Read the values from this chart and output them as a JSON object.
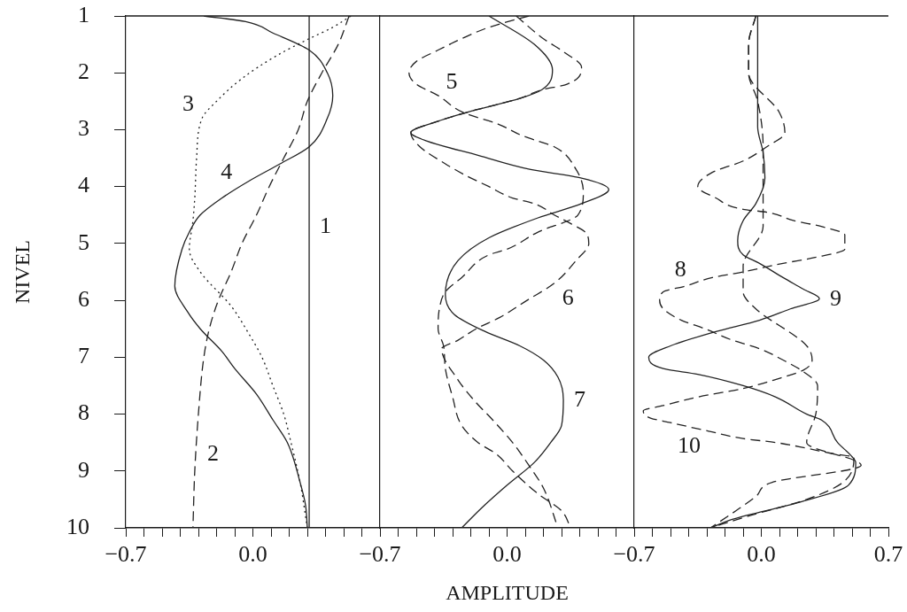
{
  "chart_data": [
    {
      "type": "line",
      "ylabel": "NIVEL",
      "xlim": [
        -0.7,
        0.7
      ],
      "xticks": [
        {
          "value": -0.7,
          "label": "−0.7"
        },
        {
          "value": -0.6,
          "label": null
        },
        {
          "value": -0.5,
          "label": null
        },
        {
          "value": -0.4,
          "label": null
        },
        {
          "value": -0.3,
          "label": null
        },
        {
          "value": -0.2,
          "label": null
        },
        {
          "value": -0.1,
          "label": null
        },
        {
          "value": 0,
          "label": "0.0"
        },
        {
          "value": 0.1,
          "label": null
        },
        {
          "value": 0.2,
          "label": null
        },
        {
          "value": 0.3,
          "label": null
        },
        {
          "value": 0.4,
          "label": null
        },
        {
          "value": 0.5,
          "label": null
        },
        {
          "value": 0.6,
          "label": null
        },
        {
          "value": 0.7,
          "label": null
        }
      ],
      "ylim": [
        10,
        1
      ],
      "yticks": [
        1,
        2,
        3,
        4,
        5,
        6,
        7,
        8,
        9,
        10
      ],
      "annotations": [
        {
          "text": "1",
          "x": 0.31,
          "y": 4.7
        },
        {
          "text": "2",
          "x": -0.31,
          "y": 8.7
        },
        {
          "text": "3",
          "x": -0.28,
          "y": 2.8
        },
        {
          "text": "4",
          "x": -0.07,
          "y": 4.0
        }
      ],
      "series": [
        {
          "color": "#222222",
          "line_style": "solid",
          "x": [
            0.31,
            0.31,
            0.31,
            0.31,
            0.31,
            0.31,
            0.31,
            0.31,
            0.31,
            0.31
          ],
          "values": [
            1,
            2,
            3,
            4,
            5,
            6,
            7,
            8,
            9,
            10
          ]
        },
        {
          "color": "#222222",
          "line_style": "dashed",
          "x": [
            0.53,
            0.47,
            0.38,
            0.3,
            0.25,
            0.17,
            0.09,
            0.02,
            -0.06,
            -0.12,
            -0.19,
            -0.24,
            -0.27,
            -0.3,
            -0.32,
            -0.33
          ],
          "values": [
            1,
            1.5,
            2,
            2.5,
            3,
            3.5,
            4,
            4.5,
            5,
            5.5,
            6,
            6.5,
            7,
            8,
            9,
            10
          ]
        },
        {
          "color": "#222222",
          "line_style": "dotted",
          "x": [
            0.54,
            0.44,
            0.31,
            0.13,
            -0.06,
            -0.2,
            -0.28,
            -0.31,
            -0.32,
            -0.33,
            -0.35,
            -0.29,
            -0.12,
            -0.02,
            0.05,
            0.11,
            0.17,
            0.21,
            0.26,
            0.3
          ],
          "values": [
            1,
            1.2,
            1.4,
            1.7,
            2.1,
            2.5,
            2.8,
            3.5,
            4.2,
            4.6,
            5.1,
            5.5,
            6.1,
            6.6,
            7,
            7.5,
            8,
            8.5,
            9.2,
            10
          ]
        },
        {
          "color": "#222222",
          "line_style": "solid",
          "x": [
            -0.27,
            -0.04,
            0.11,
            0.31,
            0.41,
            0.44,
            0.41,
            0.31,
            0.15,
            -0.02,
            -0.17,
            -0.29,
            -0.35,
            -0.39,
            -0.43,
            -0.36,
            -0.29,
            -0.17,
            -0.1,
            0.02,
            0.11,
            0.19,
            0.26,
            0.29,
            0.3
          ],
          "values": [
            1,
            1.1,
            1.3,
            1.6,
            2,
            2.4,
            2.8,
            3.3,
            3.6,
            3.9,
            4.2,
            4.5,
            4.8,
            5.1,
            5.75,
            6.2,
            6.5,
            6.9,
            7.2,
            7.65,
            8.1,
            8.5,
            9.2,
            9.6,
            10
          ]
        }
      ]
    },
    {
      "type": "line",
      "xlabel": "AMPLITUDE",
      "tick_labels": "x",
      "xlim": [
        -0.7,
        0.7
      ],
      "xticks": [
        {
          "value": -0.7,
          "label": "−0.7"
        },
        {
          "value": -0.6,
          "label": null
        },
        {
          "value": -0.5,
          "label": null
        },
        {
          "value": -0.4,
          "label": null
        },
        {
          "value": -0.3,
          "label": null
        },
        {
          "value": -0.2,
          "label": null
        },
        {
          "value": -0.1,
          "label": null
        },
        {
          "value": 0,
          "label": "0.0"
        },
        {
          "value": 0.1,
          "label": null
        },
        {
          "value": 0.2,
          "label": null
        },
        {
          "value": 0.3,
          "label": null
        },
        {
          "value": 0.4,
          "label": null
        },
        {
          "value": 0.5,
          "label": null
        },
        {
          "value": 0.6,
          "label": null
        },
        {
          "value": 0.7,
          "label": null
        }
      ],
      "ylim": [
        10,
        1
      ],
      "yticks": [
        1,
        2,
        3,
        4,
        5,
        6,
        7,
        8,
        9,
        10
      ],
      "annotations": [
        {
          "text": "5",
          "x": -0.38,
          "y": 2.4
        },
        {
          "text": "6",
          "x": 0.26,
          "y": 5.7
        },
        {
          "text": "7",
          "x": 0.31,
          "y": 7.75
        }
      ],
      "series": [
        {
          "color": "#222222",
          "line_style": "dashed",
          "x": [
            0.12,
            -0.1,
            -0.25,
            -0.38,
            -0.5,
            -0.54,
            -0.5,
            -0.38,
            -0.24,
            -0.05,
            0.08,
            0.17,
            0.26,
            0.38,
            0.42,
            0.39,
            0.17,
            0.0,
            -0.1,
            -0.25,
            -0.34,
            -0.37,
            -0.38,
            -0.35,
            -0.34,
            -0.3,
            -0.25,
            -0.16,
            -0.06,
            0.03,
            0.17,
            0.3,
            0.35
          ],
          "values": [
            1,
            1.2,
            1.4,
            1.6,
            1.8,
            2,
            2.2,
            2.4,
            2.7,
            2.9,
            3.1,
            3.2,
            3.3,
            3.7,
            4.1,
            4.5,
            4.8,
            5.1,
            5.2,
            5.6,
            5.85,
            6.1,
            6.5,
            6.8,
            7.2,
            7.7,
            8.2,
            8.5,
            8.7,
            9,
            9.4,
            9.7,
            10
          ]
        },
        {
          "color": "#222222",
          "line_style": "dashed",
          "x": [
            0.05,
            0.2,
            0.32,
            0.41,
            0.33,
            0.19,
            0.07,
            -0.17,
            -0.38,
            -0.53,
            -0.48,
            -0.34,
            -0.23,
            -0.1,
            0.03,
            0.15,
            0.26,
            0.35,
            0.43,
            0.45,
            0.38,
            0.26,
            0.11,
            -0.04,
            -0.17,
            -0.27,
            -0.36,
            -0.27,
            -0.17,
            -0.08,
            0.03,
            0.12,
            0.2,
            0.28
          ],
          "values": [
            1,
            1.4,
            1.65,
            1.9,
            2.2,
            2.3,
            2.45,
            2.65,
            2.85,
            3.05,
            3.3,
            3.6,
            3.8,
            4,
            4.2,
            4.3,
            4.5,
            4.65,
            4.8,
            5,
            5.3,
            5.7,
            6,
            6.3,
            6.5,
            6.7,
            6.85,
            7.4,
            7.8,
            8.1,
            8.5,
            8.9,
            9.3,
            10
          ]
        },
        {
          "color": "#222222",
          "line_style": "solid",
          "x": [
            -0.1,
            0.15,
            0.25,
            0.19,
            0.07,
            -0.17,
            -0.38,
            -0.53,
            -0.44,
            -0.16,
            0.13,
            0.41,
            0.56,
            0.41,
            0.17,
            -0.1,
            -0.27,
            -0.34,
            -0.29,
            -0.12,
            0.07,
            0.2,
            0.28,
            0.31,
            0.3,
            0.24,
            0.15,
            0.0,
            -0.14,
            -0.25
          ],
          "values": [
            1,
            1.5,
            1.95,
            2.3,
            2.45,
            2.65,
            2.85,
            3.05,
            3.2,
            3.45,
            3.7,
            3.85,
            4.05,
            4.3,
            4.55,
            4.9,
            5.3,
            5.9,
            6.25,
            6.55,
            6.8,
            7.05,
            7.35,
            7.75,
            8.2,
            8.5,
            8.85,
            9.25,
            9.65,
            10
          ]
        }
      ]
    },
    {
      "type": "line",
      "tick_labels": "x",
      "xlim": [
        -0.7,
        0.7
      ],
      "xticks": [
        {
          "value": -0.7,
          "label": "−0.7"
        },
        {
          "value": -0.6,
          "label": null
        },
        {
          "value": -0.5,
          "label": null
        },
        {
          "value": -0.4,
          "label": null
        },
        {
          "value": -0.3,
          "label": null
        },
        {
          "value": -0.2,
          "label": null
        },
        {
          "value": -0.1,
          "label": null
        },
        {
          "value": 0,
          "label": "0.0"
        },
        {
          "value": 0.1,
          "label": null
        },
        {
          "value": 0.2,
          "label": null
        },
        {
          "value": 0.3,
          "label": null
        },
        {
          "value": 0.4,
          "label": null
        },
        {
          "value": 0.5,
          "label": null
        },
        {
          "value": 0.6,
          "label": null
        },
        {
          "value": 0.7,
          "label": "0.7"
        }
      ],
      "ylim": [
        10,
        1
      ],
      "yticks": [
        1,
        2,
        3,
        4,
        5,
        6,
        7,
        8,
        9,
        10
      ],
      "annotations": [
        {
          "text": "8",
          "x": -0.37,
          "y": 5.7
        },
        {
          "text": "9",
          "x": 0.32,
          "y": 5.97
        },
        {
          "text": "10",
          "x": -0.29,
          "y": 8.3
        }
      ],
      "series": [
        {
          "color": "#222222",
          "line_style": "dashed",
          "x": [
            -0.03,
            -0.07,
            -0.07,
            0.1,
            0.13,
            0.03,
            -0.1,
            -0.27,
            -0.35,
            -0.25,
            -0.1,
            0.03,
            0.18,
            0.33,
            0.46,
            0.46,
            0.29,
            0.12,
            -0.1,
            -0.27,
            -0.42,
            -0.54,
            -0.56,
            -0.54,
            -0.44,
            -0.31,
            -0.16,
            -0.01,
            0.12,
            0.23,
            0.31,
            0.3,
            0.25,
            0.55,
            0.06,
            -0.03,
            -0.14,
            -0.28
          ],
          "values": [
            1,
            1.5,
            2,
            2.7,
            3.05,
            3.3,
            3.55,
            3.75,
            4,
            4.2,
            4.4,
            4.45,
            4.6,
            4.7,
            4.85,
            5.1,
            5.25,
            5.35,
            5.5,
            5.6,
            5.75,
            5.85,
            6,
            6.15,
            6.35,
            6.5,
            6.7,
            6.85,
            7.05,
            7.25,
            7.5,
            8,
            8.5,
            8.9,
            9.2,
            9.45,
            9.7,
            10
          ]
        },
        {
          "color": "#222222",
          "line_style": "solid",
          "x": [
            -0.02,
            -0.02,
            -0.02,
            0.01,
            0.02,
            -0.03,
            -0.1,
            -0.13,
            -0.1,
            -0.01,
            0.12,
            0.23,
            0.32,
            0.16,
            -0.01,
            -0.25,
            -0.5,
            -0.62,
            -0.54,
            -0.35,
            -0.1,
            0.08,
            0.25,
            0.33,
            0.42,
            0.5,
            0.52,
            0.48,
            0.21,
            -0.16,
            -0.28
          ],
          "values": [
            1,
            2.25,
            2.95,
            3.4,
            3.85,
            4.3,
            4.6,
            4.95,
            5.2,
            5.35,
            5.6,
            5.8,
            5.97,
            6.15,
            6.35,
            6.55,
            6.8,
            7,
            7.2,
            7.3,
            7.5,
            7.7,
            8,
            8.1,
            8.5,
            8.75,
            8.85,
            9.25,
            9.55,
            9.85,
            10
          ]
        },
        {
          "color": "#222222",
          "line_style": "dashed",
          "x": [
            -0.03,
            -0.07,
            -0.07,
            -0.02,
            0.01,
            0.01,
            -0.1,
            -0.1,
            -0.03,
            0.25,
            0.28,
            0.23,
            0.07,
            -0.1,
            -0.35,
            -0.54,
            -0.65,
            -0.61,
            -0.5,
            -0.29,
            -0.1,
            0.08,
            0.25,
            0.4,
            0.51,
            0.45,
            0.25,
            -0.08,
            -0.28
          ],
          "values": [
            1,
            1.5,
            2,
            2.5,
            3.3,
            4.7,
            5.4,
            5.85,
            6.15,
            6.8,
            7.05,
            7.23,
            7.4,
            7.55,
            7.7,
            7.85,
            7.94,
            8.07,
            8.15,
            8.3,
            8.43,
            8.5,
            8.6,
            8.7,
            8.76,
            9.2,
            9.5,
            9.8,
            10
          ]
        }
      ]
    }
  ]
}
